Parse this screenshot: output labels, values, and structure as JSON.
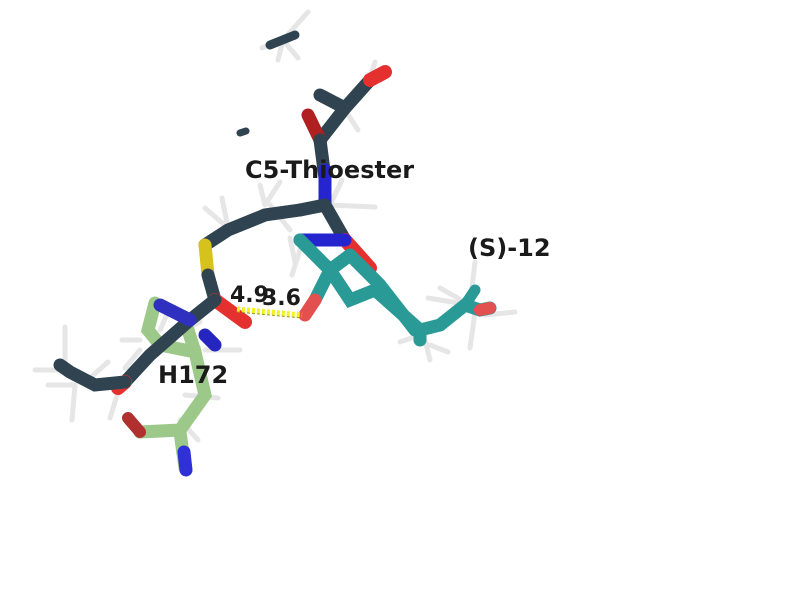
{
  "labels": {
    "thioester": "C5-Thioester",
    "ligand": "(S)-12",
    "residue": "H172"
  },
  "distances": {
    "d1": "4.9",
    "d2": "3.6"
  },
  "colors": {
    "background": "#ffffff",
    "carbon_enzyme": "#2f4350",
    "carbon_ligand": "#2a9a96",
    "carbon_residue": "#9cc98a",
    "hydrogen": "#e8e8e8",
    "nitrogen": "#2323d8",
    "oxygen": "#e53030",
    "sulfur": "#d6c21c",
    "hbond": "#f2f21c"
  }
}
